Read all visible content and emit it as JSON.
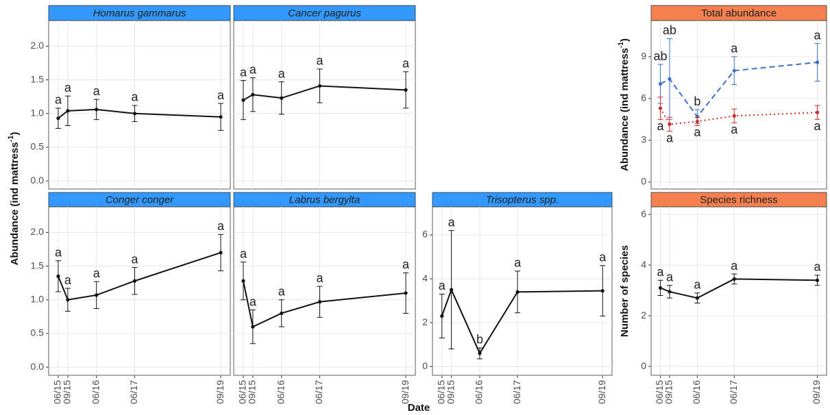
{
  "chart_data": [
    {
      "type": "line",
      "title": "Homarus gammarus",
      "title_italic": true,
      "header_color": "#3399ff",
      "x": [
        "06/15",
        "09/15",
        "06/16",
        "06/17",
        "09/19"
      ],
      "xlim": [
        "03/15",
        "12/19"
      ],
      "ylim": [
        -0.12,
        2.38
      ],
      "yticks": [
        {
          "value": 0,
          "label": "0.0"
        },
        0.5,
        {
          "value": 1,
          "label": "1.0"
        },
        1.5,
        {
          "value": 2,
          "label": "2.0"
        }
      ],
      "series": [
        {
          "color": "#111111",
          "dash": "solid",
          "values": [
            0.93,
            1.04,
            1.06,
            1.0,
            0.95
          ],
          "errors": [
            0.15,
            0.22,
            0.15,
            0.12,
            0.2
          ],
          "letters": [
            "a",
            "a",
            "a",
            "a",
            "a"
          ],
          "letter_position": "above"
        }
      ]
    },
    {
      "type": "line",
      "title": "Cancer pagurus",
      "title_italic": true,
      "header_color": "#3399ff",
      "x": [
        "06/15",
        "09/15",
        "06/16",
        "06/17",
        "09/19"
      ],
      "xlim": [
        "03/15",
        "12/19"
      ],
      "ylim": [
        -0.12,
        2.38
      ],
      "yticks": [
        0,
        0.5,
        1,
        1.5,
        2
      ],
      "series": [
        {
          "color": "#111111",
          "dash": "solid",
          "values": [
            1.2,
            1.28,
            1.23,
            1.41,
            1.35
          ],
          "errors": [
            0.29,
            0.25,
            0.24,
            0.25,
            0.27
          ],
          "letters": [
            "a",
            "a",
            "a",
            "a",
            "a"
          ],
          "letter_position": "above"
        }
      ]
    },
    {
      "type": "line",
      "title": "Conger conger",
      "title_italic": true,
      "header_color": "#3399ff",
      "x": [
        "06/15",
        "09/15",
        "06/16",
        "06/17",
        "09/19"
      ],
      "xlim": [
        "03/15",
        "12/19"
      ],
      "ylim": [
        -0.12,
        2.38
      ],
      "yticks": [
        {
          "value": 0,
          "label": "0.0"
        },
        0.5,
        {
          "value": 1,
          "label": "1.0"
        },
        1.5,
        {
          "value": 2,
          "label": "2.0"
        }
      ],
      "series": [
        {
          "color": "#111111",
          "dash": "solid",
          "values": [
            1.35,
            1.0,
            1.07,
            1.28,
            1.7
          ],
          "errors": [
            0.23,
            0.17,
            0.2,
            0.2,
            0.27
          ],
          "letters": [
            "a",
            "a",
            "a",
            "a",
            "a"
          ],
          "letter_position": "above"
        }
      ]
    },
    {
      "type": "line",
      "title": "Labrus bergylta",
      "title_italic": true,
      "header_color": "#3399ff",
      "x": [
        "06/15",
        "09/15",
        "06/16",
        "06/17",
        "09/19"
      ],
      "xlim": [
        "03/15",
        "12/19"
      ],
      "ylim": [
        -0.12,
        2.38
      ],
      "yticks": [
        0,
        0.5,
        1,
        1.5,
        2
      ],
      "series": [
        {
          "color": "#111111",
          "dash": "solid",
          "values": [
            1.28,
            0.6,
            0.8,
            0.97,
            1.1
          ],
          "errors": [
            0.28,
            0.25,
            0.2,
            0.23,
            0.3
          ],
          "letters": [
            "a",
            "a",
            "a",
            "a",
            "a"
          ],
          "letter_position": "above"
        }
      ]
    },
    {
      "type": "line",
      "title": "Trisopterus spp.",
      "title_italic": true,
      "header_color": "#3399ff",
      "x": [
        "06/15",
        "09/15",
        "06/16",
        "06/17",
        "09/19"
      ],
      "xlim": [
        "03/15",
        "12/19"
      ],
      "ylim": [
        -0.4,
        7.28
      ],
      "yticks": [
        0,
        2,
        4,
        6
      ],
      "series": [
        {
          "color": "#111111",
          "dash": "solid",
          "values": [
            2.3,
            3.5,
            0.6,
            3.4,
            3.45
          ],
          "errors": [
            1.0,
            2.7,
            0.25,
            0.95,
            1.15
          ],
          "letters": [
            "a",
            "a",
            "b",
            "a",
            "a"
          ],
          "letter_position": "above"
        }
      ]
    },
    {
      "type": "line",
      "title": "Total abundance",
      "title_italic": false,
      "header_color": "#f4804f",
      "ylabel": [
        "Abundance (ind  mattress",
        "-1",
        ")"
      ],
      "x": [
        "06/15",
        "09/15",
        "06/16",
        "06/17",
        "09/19"
      ],
      "xlim": [
        "03/15",
        "12/19"
      ],
      "ylim": [
        -0.5,
        11.6
      ],
      "yticks": [
        0,
        3,
        6,
        9
      ],
      "series": [
        {
          "color": "#3a6fd0",
          "dash": "dashed",
          "values": [
            7.05,
            7.4,
            4.7,
            8.0,
            8.6
          ],
          "errors": [
            1.4,
            2.9,
            0.5,
            1.0,
            1.35
          ],
          "letters": [
            "ab",
            "ab",
            "b",
            "a",
            "a"
          ],
          "letter_position": "above"
        },
        {
          "color": "#d62828",
          "dash": "dotted",
          "values": [
            5.3,
            4.15,
            4.35,
            4.75,
            5.0
          ],
          "errors": [
            0.8,
            0.5,
            0.3,
            0.5,
            0.5
          ],
          "letters": [
            "a",
            "a",
            "a",
            "a",
            "a"
          ],
          "letter_position": "below"
        }
      ]
    },
    {
      "type": "line",
      "title": "Species richness",
      "title_italic": false,
      "header_color": "#f4804f",
      "ylabel": [
        "Number of species"
      ],
      "x": [
        "06/15",
        "09/15",
        "06/16",
        "06/17",
        "09/19"
      ],
      "xlim": [
        "03/15",
        "12/19"
      ],
      "ylim": [
        -0.35,
        6.3
      ],
      "yticks": [
        0,
        2,
        4,
        6
      ],
      "series": [
        {
          "color": "#111111",
          "dash": "solid",
          "values": [
            3.1,
            2.95,
            2.7,
            3.45,
            3.4
          ],
          "errors": [
            0.3,
            0.25,
            0.2,
            0.2,
            0.2
          ],
          "letters": [
            "a",
            "a",
            "a",
            "a",
            "a"
          ],
          "letter_position": "above"
        }
      ]
    }
  ],
  "xlabel": "Date",
  "ylabel": [
    "Abundance (ind  mattress",
    "-1",
    ")"
  ]
}
